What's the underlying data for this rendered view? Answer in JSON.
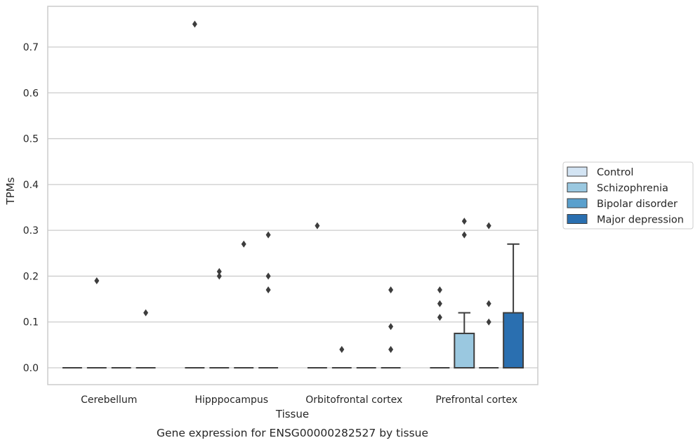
{
  "chart_data": {
    "type": "box",
    "xlabel": "Tissue",
    "ylabel": "TPMs",
    "caption": "Gene expression for ENSG00000282527 by tissue",
    "categories": [
      "Cerebellum",
      "Hipppocampus",
      "Orbitofrontal cortex",
      "Prefrontal cortex"
    ],
    "ylim": [
      -0.037,
      0.79
    ],
    "yticks": [
      0.0,
      0.1,
      0.2,
      0.3,
      0.4,
      0.5,
      0.6,
      0.7
    ],
    "ytick_labels": [
      "0.0",
      "0.1",
      "0.2",
      "0.3",
      "0.4",
      "0.5",
      "0.6",
      "0.7"
    ],
    "grid": true,
    "legend_position": "right",
    "series": [
      {
        "name": "Control",
        "color": "#d3e4f3",
        "boxes": [
          {
            "q1": 0,
            "median": 0,
            "q3": 0,
            "whisker_low": 0,
            "whisker_high": 0,
            "outliers": []
          },
          {
            "q1": 0,
            "median": 0,
            "q3": 0,
            "whisker_low": 0,
            "whisker_high": 0,
            "outliers": [
              0.75
            ]
          },
          {
            "q1": 0,
            "median": 0,
            "q3": 0,
            "whisker_low": 0,
            "whisker_high": 0,
            "outliers": [
              0.31
            ]
          },
          {
            "q1": 0,
            "median": 0,
            "q3": 0,
            "whisker_low": 0,
            "whisker_high": 0,
            "outliers": [
              0.17,
              0.14,
              0.11
            ]
          }
        ]
      },
      {
        "name": "Schizophrenia",
        "color": "#9ac8e0",
        "boxes": [
          {
            "q1": 0,
            "median": 0,
            "q3": 0,
            "whisker_low": 0,
            "whisker_high": 0,
            "outliers": [
              0.19
            ]
          },
          {
            "q1": 0,
            "median": 0,
            "q3": 0,
            "whisker_low": 0,
            "whisker_high": 0,
            "outliers": [
              0.21,
              0.2
            ]
          },
          {
            "q1": 0,
            "median": 0,
            "q3": 0,
            "whisker_low": 0,
            "whisker_high": 0,
            "outliers": [
              0.04
            ]
          },
          {
            "q1": 0,
            "median": 0,
            "q3": 0.075,
            "whisker_low": 0,
            "whisker_high": 0.12,
            "outliers": [
              0.32,
              0.29
            ]
          }
        ]
      },
      {
        "name": "Bipolar disorder",
        "color": "#5aa0cd",
        "boxes": [
          {
            "q1": 0,
            "median": 0,
            "q3": 0,
            "whisker_low": 0,
            "whisker_high": 0,
            "outliers": []
          },
          {
            "q1": 0,
            "median": 0,
            "q3": 0,
            "whisker_low": 0,
            "whisker_high": 0,
            "outliers": [
              0.27
            ]
          },
          {
            "q1": 0,
            "median": 0,
            "q3": 0,
            "whisker_low": 0,
            "whisker_high": 0,
            "outliers": []
          },
          {
            "q1": 0,
            "median": 0,
            "q3": 0,
            "whisker_low": 0,
            "whisker_high": 0,
            "outliers": [
              0.31,
              0.14,
              0.1
            ]
          }
        ]
      },
      {
        "name": "Major depression",
        "color": "#2a6fb0",
        "boxes": [
          {
            "q1": 0,
            "median": 0,
            "q3": 0,
            "whisker_low": 0,
            "whisker_high": 0,
            "outliers": [
              0.12
            ]
          },
          {
            "q1": 0,
            "median": 0,
            "q3": 0,
            "whisker_low": 0,
            "whisker_high": 0,
            "outliers": [
              0.29,
              0.2,
              0.17
            ]
          },
          {
            "q1": 0,
            "median": 0,
            "q3": 0,
            "whisker_low": 0,
            "whisker_high": 0,
            "outliers": [
              0.17,
              0.09,
              0.04
            ]
          },
          {
            "q1": 0,
            "median": 0,
            "q3": 0.12,
            "whisker_low": 0,
            "whisker_high": 0.27,
            "outliers": []
          }
        ]
      }
    ]
  }
}
